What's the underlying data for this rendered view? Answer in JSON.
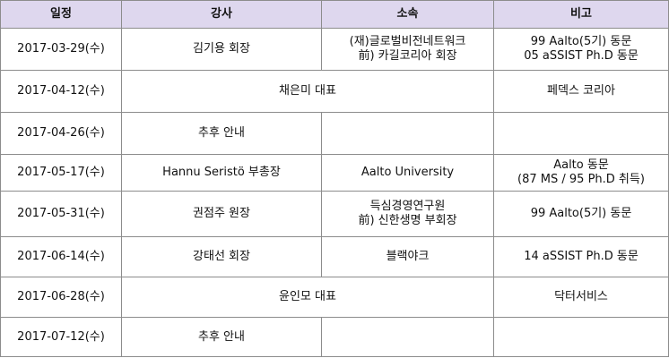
{
  "table": {
    "headers": [
      "일정",
      "강사",
      "소속",
      "비고"
    ],
    "rows": [
      {
        "date": "2017-03-29(수)",
        "speaker": "김기용 회장",
        "affiliation": [
          "(재)글로벌비전네트워크",
          "前) 카길코리아 회장"
        ],
        "note": [
          "99 Aalto(5기) 동문",
          "05 aSSIST Ph.D 동문"
        ]
      },
      {
        "date": "2017-04-12(수)",
        "speaker": "채은미 대표",
        "affiliation": [],
        "note": [
          "페덱스 코리아"
        ]
      },
      {
        "date": "2017-04-26(수)",
        "speaker": "추후 안내",
        "affiliation": [],
        "note": []
      },
      {
        "date": "2017-05-17(수)",
        "speaker": "Hannu Seristö 부총장",
        "affiliation": [
          "Aalto University"
        ],
        "note": [
          "Aalto 동문",
          "(87 MS / 95 Ph.D 취득)"
        ]
      },
      {
        "date": "2017-05-31(수)",
        "speaker": "권점주 원장",
        "affiliation": [
          "득심경영연구원",
          "前) 신한생명 부회장"
        ],
        "note": [
          "99 Aalto(5기) 동문"
        ]
      },
      {
        "date": "2017-06-14(수)",
        "speaker": "강태선 회장",
        "affiliation": [
          "블랙야크"
        ],
        "note": [
          "14 aSSIST Ph.D 동문"
        ]
      },
      {
        "date": "2017-06-28(수)",
        "speaker": "윤인모 대표",
        "affiliation": [],
        "note": [
          "닥터서비스"
        ]
      },
      {
        "date": "2017-07-12(수)",
        "speaker": "추후 안내",
        "affiliation": [],
        "note": []
      }
    ]
  }
}
